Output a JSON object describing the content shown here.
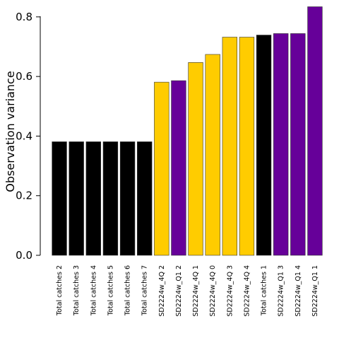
{
  "chart_data": {
    "type": "bar",
    "title": "",
    "xlabel": "",
    "ylabel": "Observation variance",
    "ylim": [
      0,
      0.84
    ],
    "yticks": [
      0.0,
      0.2,
      0.4,
      0.6,
      0.8
    ],
    "ytick_labels": [
      "0.0",
      "0.2",
      "0.4",
      "0.6",
      "0.8"
    ],
    "grid": false,
    "legend": "none",
    "categories": [
      "Total catches 2",
      "Total catches 3",
      "Total catches 4",
      "Total catches 5",
      "Total catches 6",
      "Total catches 7",
      "SD2224w_4Q 2",
      "SD2224w_Q1 2",
      "SD2224w_4Q 1",
      "SD2224w_4Q 0",
      "SD2224w_4Q 3",
      "SD2224w_4Q 4",
      "Total catches 1",
      "SD2224w_Q1 3",
      "SD2224w_Q1 4",
      "SD2224w_Q1 1"
    ],
    "values": [
      0.381,
      0.381,
      0.381,
      0.381,
      0.381,
      0.381,
      0.581,
      0.586,
      0.647,
      0.674,
      0.732,
      0.732,
      0.739,
      0.744,
      0.744,
      0.834
    ],
    "bar_colors": [
      "#000000",
      "#000000",
      "#000000",
      "#000000",
      "#000000",
      "#000000",
      "#FFCC00",
      "#660099",
      "#FFCC00",
      "#FFCC00",
      "#FFCC00",
      "#FFCC00",
      "#000000",
      "#660099",
      "#660099",
      "#660099"
    ]
  }
}
